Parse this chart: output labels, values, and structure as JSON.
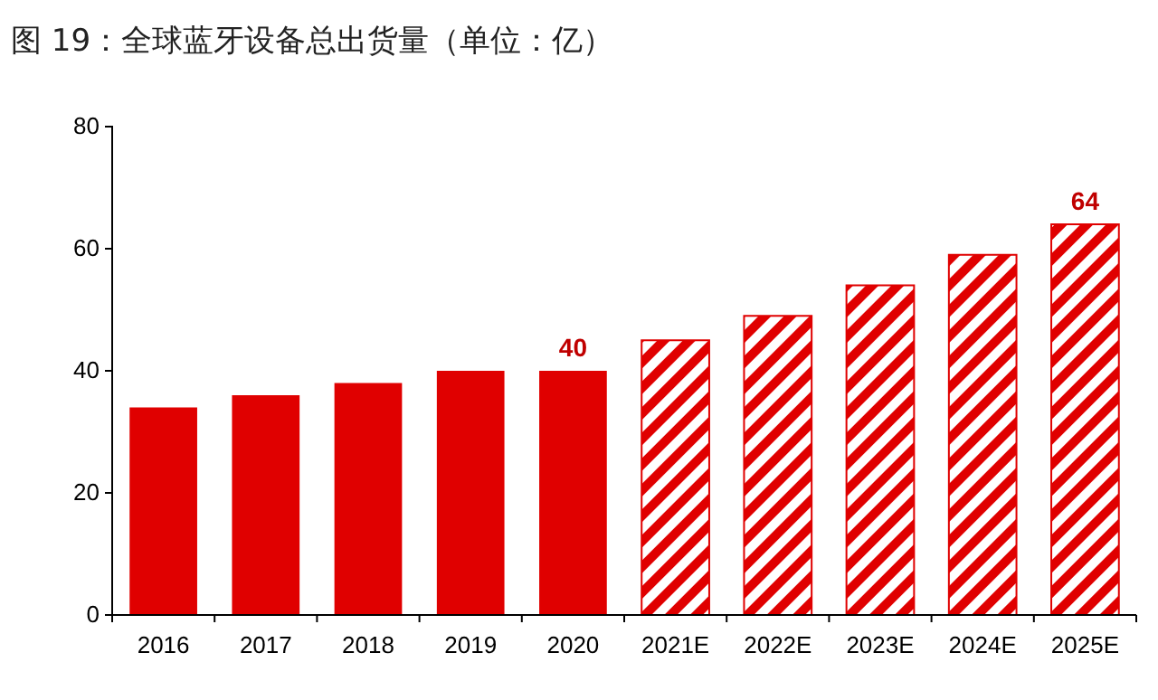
{
  "chart_data": {
    "type": "bar",
    "title": "图 19：全球蓝牙设备总出货量（单位：亿）",
    "categories": [
      "2016",
      "2017",
      "2018",
      "2019",
      "2020",
      "2021E",
      "2022E",
      "2023E",
      "2024E",
      "2025E"
    ],
    "series": [
      {
        "color": "#e00000",
        "values": [
          34,
          36,
          38,
          40,
          40,
          null,
          null,
          null,
          null,
          null
        ],
        "value_labels": [
          null,
          null,
          null,
          null,
          "40",
          null,
          null,
          null,
          null,
          null
        ]
      },
      {
        "color": "#e00000",
        "values": [
          null,
          null,
          null,
          null,
          null,
          45,
          49,
          54,
          59,
          64
        ],
        "value_labels": [
          null,
          null,
          null,
          null,
          null,
          null,
          null,
          null,
          null,
          "64"
        ]
      }
    ],
    "ylim": [
      0,
      80
    ],
    "yticks": [
      0,
      20,
      40,
      60,
      80
    ],
    "grid": false
  }
}
